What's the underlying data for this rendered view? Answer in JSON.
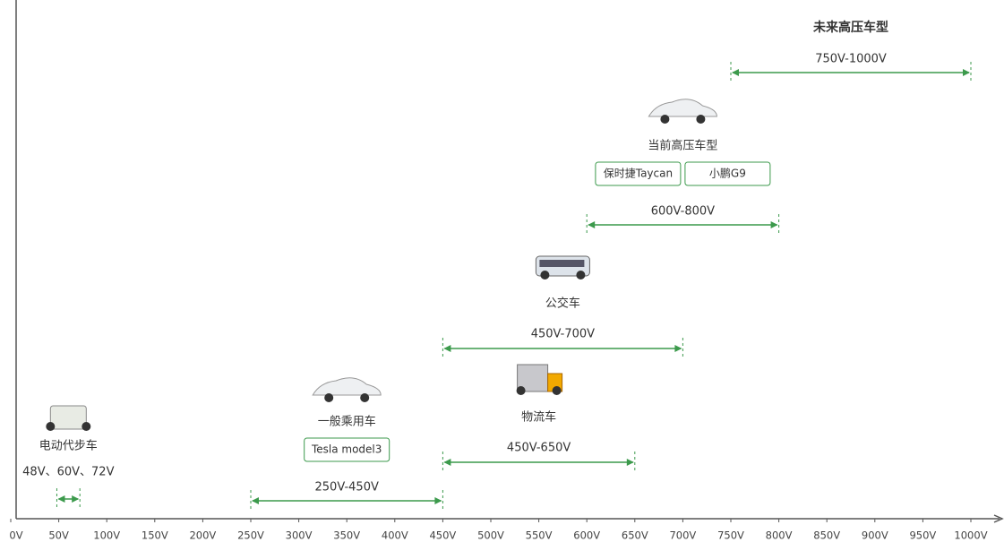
{
  "chart_data": {
    "type": "range",
    "xlim": [
      0,
      1000
    ],
    "xticks": [
      {
        "value": 0,
        "label": "0V"
      },
      {
        "value": 50,
        "label": "50V"
      },
      {
        "value": 100,
        "label": "100V"
      },
      {
        "value": 150,
        "label": "150V"
      },
      {
        "value": 200,
        "label": "200V"
      },
      {
        "value": 250,
        "label": "250V"
      },
      {
        "value": 300,
        "label": "300V"
      },
      {
        "value": 350,
        "label": "350V"
      },
      {
        "value": 400,
        "label": "400V"
      },
      {
        "value": 450,
        "label": "450V"
      },
      {
        "value": 500,
        "label": "500V"
      },
      {
        "value": 550,
        "label": "550V"
      },
      {
        "value": 600,
        "label": "600V"
      },
      {
        "value": 650,
        "label": "650V"
      },
      {
        "value": 700,
        "label": "700V"
      },
      {
        "value": 750,
        "label": "750V"
      },
      {
        "value": 800,
        "label": "800V"
      },
      {
        "value": 850,
        "label": "850V"
      },
      {
        "value": 900,
        "label": "900V"
      },
      {
        "value": 950,
        "label": "950V"
      },
      {
        "value": 1000,
        "label": "1000V"
      }
    ],
    "color": "#3c9a4c",
    "ranges": [
      {
        "name": "电动代步车",
        "label": "48V、60V、72V",
        "low": 48,
        "high": 72
      },
      {
        "name": "一般乘用车",
        "label": "250V-450V",
        "low": 250,
        "high": 450,
        "models": [
          "Tesla model3"
        ]
      },
      {
        "name": "物流车",
        "label": "450V-650V",
        "low": 450,
        "high": 650
      },
      {
        "name": "公交车",
        "label": "450V-700V",
        "low": 450,
        "high": 700
      },
      {
        "name": "当前高压车型",
        "label": "600V-800V",
        "low": 600,
        "high": 800,
        "models": [
          "保时捷Taycan",
          "小鹏G9"
        ]
      },
      {
        "name": "未来高压车型",
        "label": "750V-1000V",
        "low": 750,
        "high": 1000
      }
    ]
  }
}
